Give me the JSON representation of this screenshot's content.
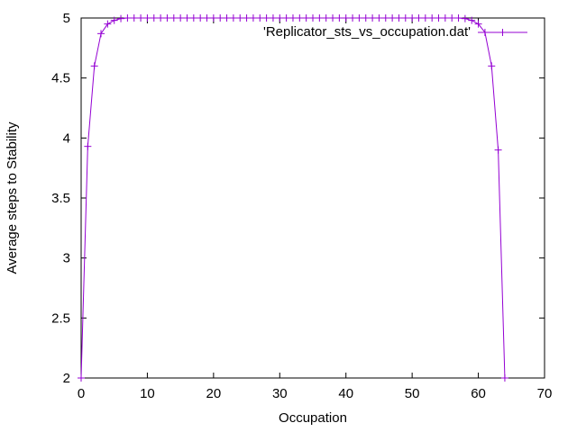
{
  "chart_data": {
    "type": "line",
    "xlabel": "Occupation",
    "ylabel": "Average steps to Stability",
    "xlim": [
      0,
      70
    ],
    "ylim": [
      2,
      5
    ],
    "x_ticks": [
      "0",
      "10",
      "20",
      "30",
      "40",
      "50",
      "60",
      "70"
    ],
    "y_ticks": [
      "2",
      "2.5",
      "3",
      "3.5",
      "4",
      "4.5",
      "5"
    ],
    "grid": false,
    "legend_position": "top-right",
    "series": [
      {
        "name": "'Replicator_sts_vs_occupation.dat'",
        "color": "#9400d3",
        "marker": "plus",
        "x": [
          0,
          1,
          2,
          3,
          4,
          5,
          6,
          7,
          8,
          9,
          10,
          11,
          12,
          13,
          14,
          15,
          16,
          17,
          18,
          19,
          20,
          21,
          22,
          23,
          24,
          25,
          26,
          27,
          28,
          29,
          30,
          31,
          32,
          33,
          34,
          35,
          36,
          37,
          38,
          39,
          40,
          41,
          42,
          43,
          44,
          45,
          46,
          47,
          48,
          49,
          50,
          51,
          52,
          53,
          54,
          55,
          56,
          57,
          58,
          59,
          60,
          61,
          62,
          63,
          64
        ],
        "y": [
          2.0,
          3.93,
          4.6,
          4.87,
          4.95,
          4.98,
          4.995,
          5,
          5,
          5,
          5,
          5,
          5,
          5,
          5,
          5,
          5,
          5,
          5,
          5,
          5,
          5,
          5,
          5,
          5,
          5,
          5,
          5,
          5,
          5,
          5,
          5,
          5,
          5,
          5,
          5,
          5,
          5,
          5,
          5,
          5,
          5,
          5,
          5,
          5,
          5,
          5,
          5,
          5,
          5,
          5,
          5,
          5,
          5,
          5,
          5,
          5,
          5,
          4.995,
          4.98,
          4.95,
          4.88,
          4.6,
          3.9,
          2.0
        ]
      }
    ]
  }
}
